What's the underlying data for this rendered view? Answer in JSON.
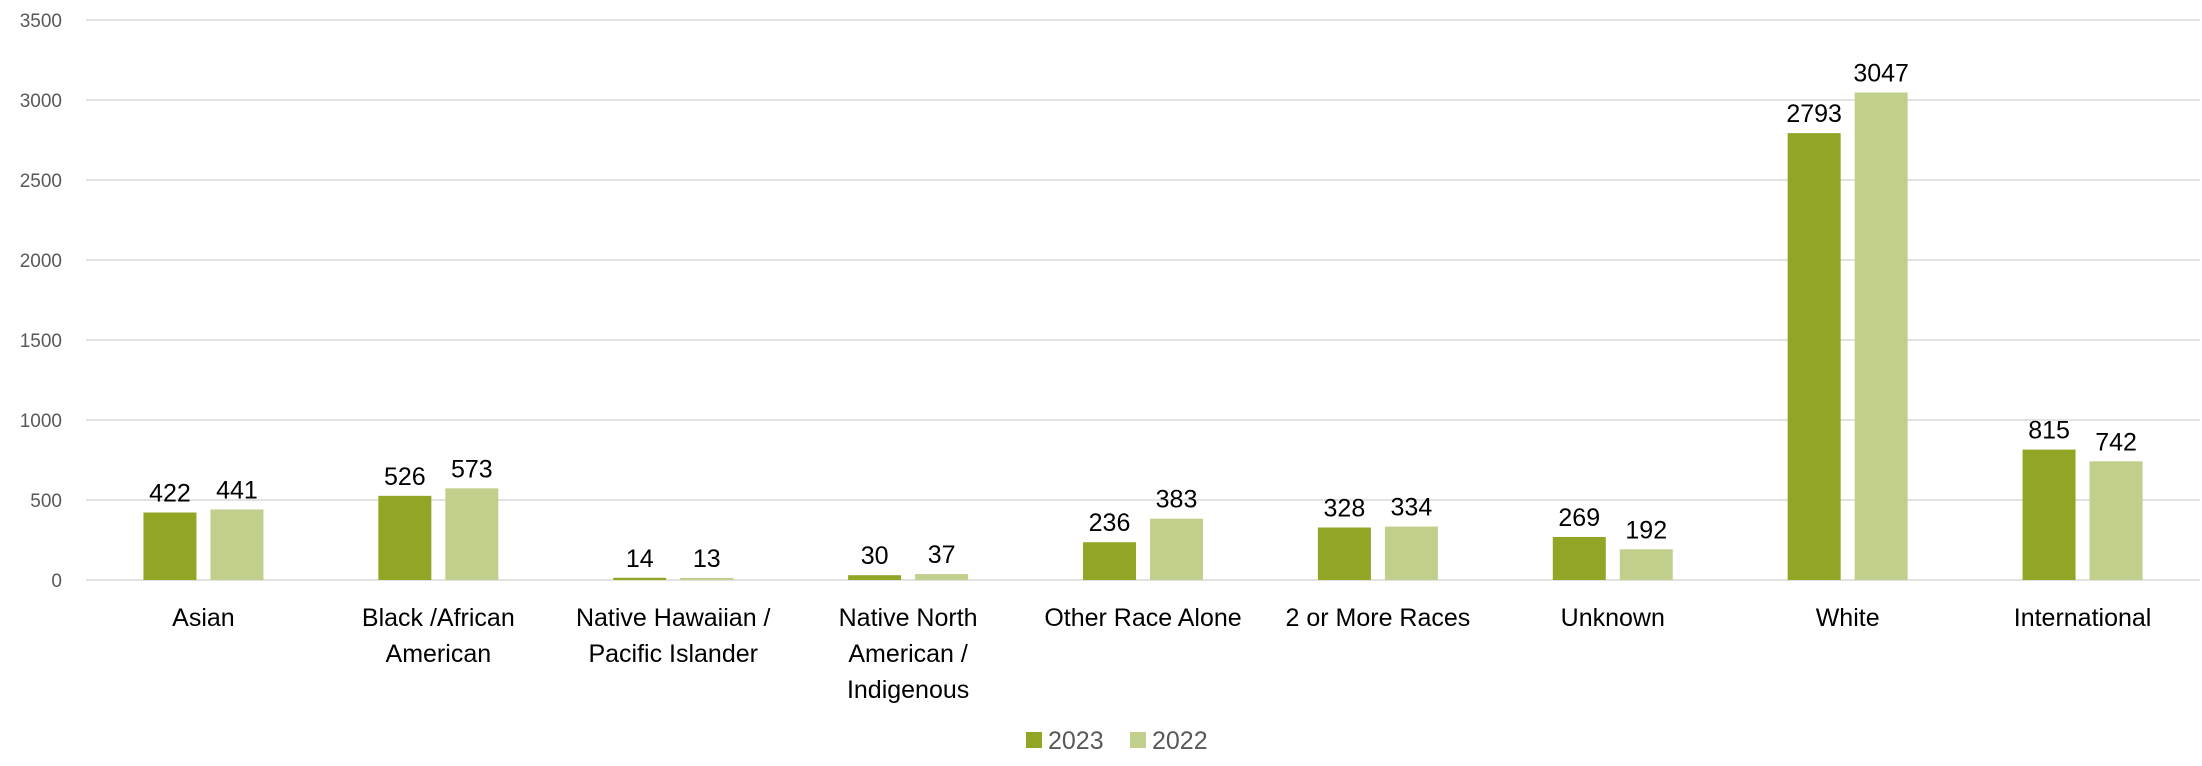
{
  "chart_data": {
    "type": "bar",
    "title": "",
    "xlabel": "",
    "ylabel": "",
    "ylim": [
      0,
      3500
    ],
    "yticks": [
      0,
      500,
      1000,
      1500,
      2000,
      2500,
      3000,
      3500
    ],
    "grid": true,
    "legend_position": "bottom",
    "categories": [
      [
        "Asian"
      ],
      [
        "Black /African",
        "American"
      ],
      [
        "Native Hawaiian /",
        "Pacific Islander"
      ],
      [
        "Native North",
        "American /",
        "Indigenous"
      ],
      [
        "Other Race Alone"
      ],
      [
        "2 or More Races"
      ],
      [
        "Unknown"
      ],
      [
        "White"
      ],
      [
        "International"
      ]
    ],
    "series": [
      {
        "name": "2023",
        "color": "#93a525",
        "values": [
          422,
          526,
          14,
          30,
          236,
          328,
          269,
          2793,
          815
        ]
      },
      {
        "name": "2022",
        "color": "#c0cf8c",
        "values": [
          441,
          573,
          13,
          37,
          383,
          334,
          192,
          3047,
          742
        ]
      }
    ]
  }
}
